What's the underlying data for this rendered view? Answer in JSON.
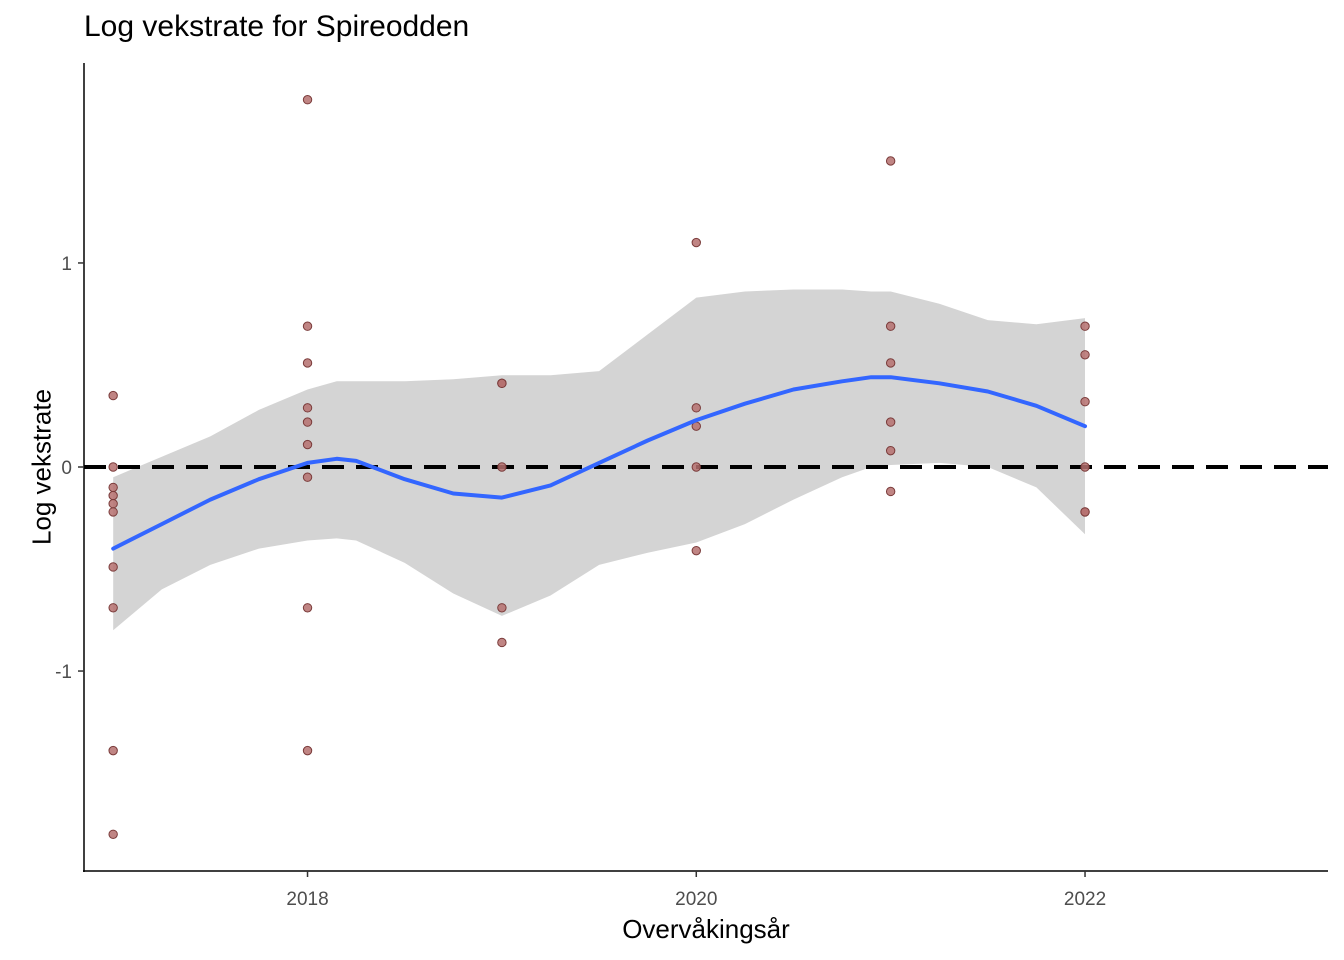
{
  "chart_data": {
    "type": "scatter",
    "title": "Log vekstrate for Spireodden",
    "xlabel": "Overvåkingsår",
    "ylabel": "Log vekstrate",
    "xlim": [
      2016.85,
      2023.25
    ],
    "ylim": [
      -1.98,
      1.98
    ],
    "xticks": [
      2018,
      2020,
      2022
    ],
    "xtick_labels": [
      "2018",
      "2020",
      "2022"
    ],
    "yticks": [
      -1,
      0,
      1
    ],
    "ytick_labels": [
      "-1",
      "0",
      "1"
    ],
    "reference_line": {
      "y": 0,
      "style": "dashed",
      "color": "#000000"
    },
    "colors": {
      "points_fill": "#b5706e",
      "points_stroke": "#7a3b3a",
      "smooth": "#3366ff",
      "ribbon": "#d4d4d4"
    },
    "grid": false,
    "points": [
      {
        "x": 2017,
        "y": 0.35
      },
      {
        "x": 2017,
        "y": 0.0
      },
      {
        "x": 2017,
        "y": -0.1
      },
      {
        "x": 2017,
        "y": -0.14
      },
      {
        "x": 2017,
        "y": -0.18
      },
      {
        "x": 2017,
        "y": -0.22
      },
      {
        "x": 2017,
        "y": -0.49
      },
      {
        "x": 2017,
        "y": -0.69
      },
      {
        "x": 2017,
        "y": -1.39
      },
      {
        "x": 2017,
        "y": -1.8
      },
      {
        "x": 2018,
        "y": 1.8
      },
      {
        "x": 2018,
        "y": 0.69
      },
      {
        "x": 2018,
        "y": 0.51
      },
      {
        "x": 2018,
        "y": 0.29
      },
      {
        "x": 2018,
        "y": 0.22
      },
      {
        "x": 2018,
        "y": 0.11
      },
      {
        "x": 2018,
        "y": -0.05
      },
      {
        "x": 2018,
        "y": -0.69
      },
      {
        "x": 2018,
        "y": -1.39
      },
      {
        "x": 2019,
        "y": 0.41
      },
      {
        "x": 2019,
        "y": 0.41
      },
      {
        "x": 2019,
        "y": 0.0
      },
      {
        "x": 2019,
        "y": -0.69
      },
      {
        "x": 2019,
        "y": -0.86
      },
      {
        "x": 2020,
        "y": 1.1
      },
      {
        "x": 2020,
        "y": 0.29
      },
      {
        "x": 2020,
        "y": 0.2
      },
      {
        "x": 2020,
        "y": 0.0
      },
      {
        "x": 2020,
        "y": -0.41
      },
      {
        "x": 2021,
        "y": 1.5
      },
      {
        "x": 2021,
        "y": 0.69
      },
      {
        "x": 2021,
        "y": 0.51
      },
      {
        "x": 2021,
        "y": 0.22
      },
      {
        "x": 2021,
        "y": 0.08
      },
      {
        "x": 2021,
        "y": -0.12
      },
      {
        "x": 2022,
        "y": 0.69
      },
      {
        "x": 2022,
        "y": 0.55
      },
      {
        "x": 2022,
        "y": 0.32
      },
      {
        "x": 2022,
        "y": 0.0
      },
      {
        "x": 2022,
        "y": -0.22
      },
      {
        "x": 2022,
        "y": -0.22
      }
    ],
    "smooth": {
      "x": [
        2017,
        2017.25,
        2017.5,
        2017.75,
        2018,
        2018.15,
        2018.25,
        2018.5,
        2018.75,
        2019,
        2019.25,
        2019.5,
        2019.75,
        2020,
        2020.25,
        2020.5,
        2020.75,
        2020.9,
        2021,
        2021.25,
        2021.5,
        2021.75,
        2022
      ],
      "y": [
        -0.4,
        -0.28,
        -0.16,
        -0.06,
        0.02,
        0.04,
        0.03,
        -0.06,
        -0.13,
        -0.15,
        -0.09,
        0.02,
        0.13,
        0.23,
        0.31,
        0.38,
        0.42,
        0.44,
        0.44,
        0.41,
        0.37,
        0.3,
        0.2
      ],
      "lower": [
        -0.8,
        -0.6,
        -0.48,
        -0.4,
        -0.36,
        -0.35,
        -0.36,
        -0.47,
        -0.62,
        -0.73,
        -0.63,
        -0.48,
        -0.42,
        -0.37,
        -0.28,
        -0.16,
        -0.05,
        0.0,
        0.01,
        0.02,
        0.0,
        -0.1,
        -0.33
      ],
      "upper": [
        -0.05,
        0.05,
        0.15,
        0.28,
        0.38,
        0.42,
        0.42,
        0.42,
        0.43,
        0.45,
        0.45,
        0.47,
        0.65,
        0.83,
        0.86,
        0.87,
        0.87,
        0.86,
        0.86,
        0.8,
        0.72,
        0.7,
        0.73
      ]
    }
  }
}
